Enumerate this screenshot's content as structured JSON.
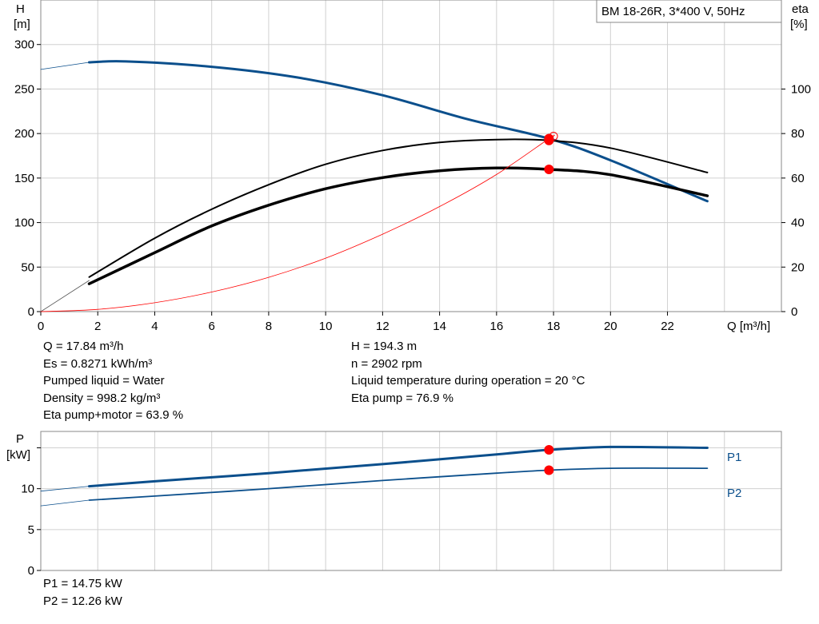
{
  "colors": {
    "blue": "#0b4f8c",
    "black": "#000000",
    "red": "#ff0000",
    "grid": "#d0d0d0"
  },
  "chart_data": [
    {
      "type": "line",
      "title": "BM  18-26R, 3*400 V, 50Hz",
      "xlabel": "Q [m³/h]",
      "ylabel": [
        "H",
        "[m]"
      ],
      "y2label": [
        "eta",
        "[%]"
      ],
      "xlim": [
        0,
        26
      ],
      "ylim": [
        0,
        350
      ],
      "y2lim": [
        0,
        140
      ],
      "xticks": [
        0,
        2,
        4,
        6,
        8,
        10,
        12,
        14,
        16,
        18,
        20,
        22
      ],
      "yticks": [
        0,
        50,
        100,
        150,
        200,
        250,
        300
      ],
      "y2ticks": [
        0,
        20,
        40,
        60,
        80,
        100
      ],
      "grid": true,
      "series": [
        {
          "key": "H",
          "axis": "left",
          "color": "#0b4f8c",
          "width": 3,
          "x": [
            1.7,
            3,
            6,
            9,
            12,
            15,
            17.84,
            20,
            23.4
          ],
          "y": [
            280,
            281,
            275,
            263,
            243,
            216,
            194.3,
            170,
            124
          ]
        },
        {
          "key": "H_ext",
          "axis": "left",
          "color": "#0b4f8c",
          "width": 0.8,
          "x": [
            0,
            1.7
          ],
          "y": [
            272,
            280
          ]
        },
        {
          "key": "eta_pump",
          "axis": "right",
          "color": "#000000",
          "width": 2,
          "x": [
            1.7,
            4,
            6,
            8,
            10,
            12,
            14,
            16,
            17.84,
            20,
            23.4
          ],
          "y": [
            15.5,
            33,
            46,
            57,
            66.2,
            72.4,
            76,
            77.3,
            76.9,
            73.5,
            62.5
          ]
        },
        {
          "key": "eta_total",
          "axis": "right",
          "color": "#000000",
          "width": 3.5,
          "x": [
            1.7,
            4,
            6,
            8,
            10,
            12,
            14,
            16,
            17.84,
            20,
            23.4
          ],
          "y": [
            12.5,
            26.5,
            38.5,
            47.8,
            55.2,
            60.2,
            63.3,
            64.5,
            63.9,
            61.5,
            52
          ]
        },
        {
          "key": "eta_ext",
          "axis": "right",
          "color": "#555555",
          "width": 0.8,
          "x": [
            0,
            1.7
          ],
          "y": [
            0,
            14
          ]
        },
        {
          "key": "system",
          "axis": "left",
          "color": "#ff0000",
          "width": 0.8,
          "x": [
            0,
            2,
            4,
            6,
            8,
            10,
            12,
            14,
            16,
            17.84,
            18
          ],
          "y": [
            0,
            2.5,
            10,
            22,
            38.5,
            60,
            87,
            118,
            154,
            194.3,
            197
          ]
        }
      ],
      "points": [
        {
          "axis": "left",
          "x": 17.84,
          "y": 194.3,
          "label": "H"
        },
        {
          "axis": "right",
          "x": 17.84,
          "y": 76.9,
          "label": "eta pump"
        },
        {
          "axis": "right",
          "x": 17.84,
          "y": 63.9,
          "label": "eta pump+motor"
        }
      ]
    },
    {
      "type": "line",
      "ylabel": [
        "P",
        "[kW]"
      ],
      "xlim": [
        0,
        26
      ],
      "ylim": [
        0,
        17
      ],
      "yticks": [
        0,
        5,
        10
      ],
      "grid": true,
      "series": [
        {
          "name": "P1",
          "color": "#0b4f8c",
          "width": 3,
          "x": [
            1.7,
            4,
            8,
            12,
            16,
            17.84,
            20,
            23.4
          ],
          "y": [
            10.3,
            10.9,
            11.9,
            13.0,
            14.2,
            14.75,
            15.1,
            15.0
          ]
        },
        {
          "name": "P2",
          "color": "#0b4f8c",
          "width": 1.8,
          "x": [
            1.7,
            4,
            8,
            12,
            16,
            17.84,
            20,
            23.4
          ],
          "y": [
            8.6,
            9.1,
            10.0,
            11.0,
            11.9,
            12.26,
            12.5,
            12.5
          ]
        },
        {
          "key": "P1_ext",
          "color": "#0b4f8c",
          "width": 0.8,
          "x": [
            0,
            1.7
          ],
          "y": [
            9.7,
            10.3
          ]
        },
        {
          "key": "P2_ext",
          "color": "#0b4f8c",
          "width": 0.8,
          "x": [
            0,
            1.7
          ],
          "y": [
            7.9,
            8.6
          ]
        }
      ],
      "points": [
        {
          "x": 17.84,
          "y": 14.75,
          "label": "P1"
        },
        {
          "x": 17.84,
          "y": 12.26,
          "label": "P2"
        }
      ]
    }
  ],
  "info_left": [
    "Q = 17.84 m³/h",
    "Es = 0.8271 kWh/m³",
    "Pumped liquid = Water",
    "Density = 998.2 kg/m³",
    "Eta pump+motor = 63.9 %"
  ],
  "info_right": [
    "H = 194.3 m",
    "n = 2902 rpm",
    "Liquid temperature during operation = 20 °C",
    "Eta pump = 76.9 %"
  ],
  "power_values": [
    "P1 = 14.75 kW",
    "P2 = 12.26 kW"
  ]
}
